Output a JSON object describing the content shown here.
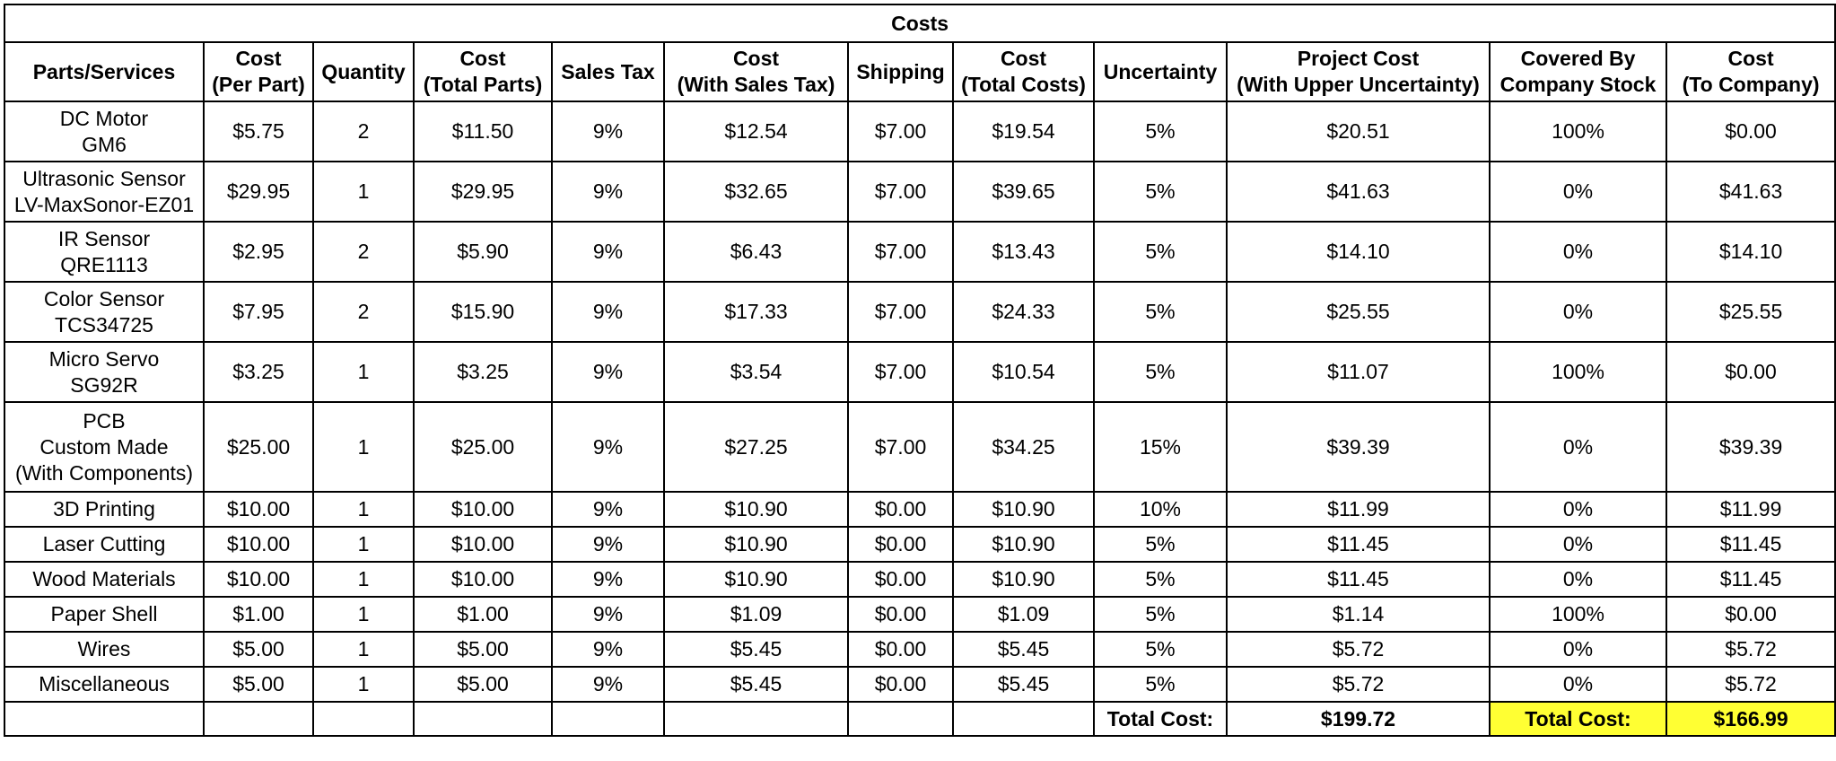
{
  "title": "Costs",
  "headers": [
    [
      "Parts/Services"
    ],
    [
      "Cost",
      "(Per Part)"
    ],
    [
      "Quantity"
    ],
    [
      "Cost",
      "(Total Parts)"
    ],
    [
      "Sales Tax"
    ],
    [
      "Cost",
      "(With Sales Tax)"
    ],
    [
      "Shipping"
    ],
    [
      "Cost",
      "(Total Costs)"
    ],
    [
      "Uncertainty"
    ],
    [
      "Project Cost",
      "(With Upper Uncertainty)"
    ],
    [
      "Covered By",
      "Company Stock"
    ],
    [
      "Cost",
      "(To Company)"
    ]
  ],
  "rows": [
    {
      "part": [
        "DC Motor",
        "GM6"
      ],
      "cells": [
        "$5.75",
        "2",
        "$11.50",
        "9%",
        "$12.54",
        "$7.00",
        "$19.54",
        "5%",
        "$20.51",
        "100%",
        "$0.00"
      ]
    },
    {
      "part": [
        "Ultrasonic Sensor",
        "LV-MaxSonor-EZ01"
      ],
      "cells": [
        "$29.95",
        "1",
        "$29.95",
        "9%",
        "$32.65",
        "$7.00",
        "$39.65",
        "5%",
        "$41.63",
        "0%",
        "$41.63"
      ]
    },
    {
      "part": [
        "IR Sensor",
        "QRE1113"
      ],
      "cells": [
        "$2.95",
        "2",
        "$5.90",
        "9%",
        "$6.43",
        "$7.00",
        "$13.43",
        "5%",
        "$14.10",
        "0%",
        "$14.10"
      ]
    },
    {
      "part": [
        "Color Sensor",
        "TCS34725"
      ],
      "cells": [
        "$7.95",
        "2",
        "$15.90",
        "9%",
        "$17.33",
        "$7.00",
        "$24.33",
        "5%",
        "$25.55",
        "0%",
        "$25.55"
      ]
    },
    {
      "part": [
        "Micro Servo",
        "SG92R"
      ],
      "cells": [
        "$3.25",
        "1",
        "$3.25",
        "9%",
        "$3.54",
        "$7.00",
        "$10.54",
        "5%",
        "$11.07",
        "100%",
        "$0.00"
      ]
    },
    {
      "part": [
        "PCB",
        "Custom Made",
        "(With Components)"
      ],
      "cells": [
        "$25.00",
        "1",
        "$25.00",
        "9%",
        "$27.25",
        "$7.00",
        "$34.25",
        "15%",
        "$39.39",
        "0%",
        "$39.39"
      ]
    },
    {
      "part": [
        "3D Printing"
      ],
      "cells": [
        "$10.00",
        "1",
        "$10.00",
        "9%",
        "$10.90",
        "$0.00",
        "$10.90",
        "10%",
        "$11.99",
        "0%",
        "$11.99"
      ]
    },
    {
      "part": [
        "Laser Cutting"
      ],
      "cells": [
        "$10.00",
        "1",
        "$10.00",
        "9%",
        "$10.90",
        "$0.00",
        "$10.90",
        "5%",
        "$11.45",
        "0%",
        "$11.45"
      ]
    },
    {
      "part": [
        "Wood Materials"
      ],
      "cells": [
        "$10.00",
        "1",
        "$10.00",
        "9%",
        "$10.90",
        "$0.00",
        "$10.90",
        "5%",
        "$11.45",
        "0%",
        "$11.45"
      ]
    },
    {
      "part": [
        "Paper Shell"
      ],
      "cells": [
        "$1.00",
        "1",
        "$1.00",
        "9%",
        "$1.09",
        "$0.00",
        "$1.09",
        "5%",
        "$1.14",
        "100%",
        "$0.00"
      ]
    },
    {
      "part": [
        "Wires"
      ],
      "cells": [
        "$5.00",
        "1",
        "$5.00",
        "9%",
        "$5.45",
        "$0.00",
        "$5.45",
        "5%",
        "$5.72",
        "0%",
        "$5.72"
      ]
    },
    {
      "part": [
        "Miscellaneous"
      ],
      "cells": [
        "$5.00",
        "1",
        "$5.00",
        "9%",
        "$5.45",
        "$0.00",
        "$5.45",
        "5%",
        "$5.72",
        "0%",
        "$5.72"
      ]
    }
  ],
  "totals": {
    "project_label": "Total Cost:",
    "project_value": "$199.72",
    "company_label": "Total Cost:",
    "company_value": "$166.99"
  },
  "colors": {
    "highlight": "#ffff33",
    "border": "#000000",
    "blank_grid": "#d0d0d0"
  }
}
